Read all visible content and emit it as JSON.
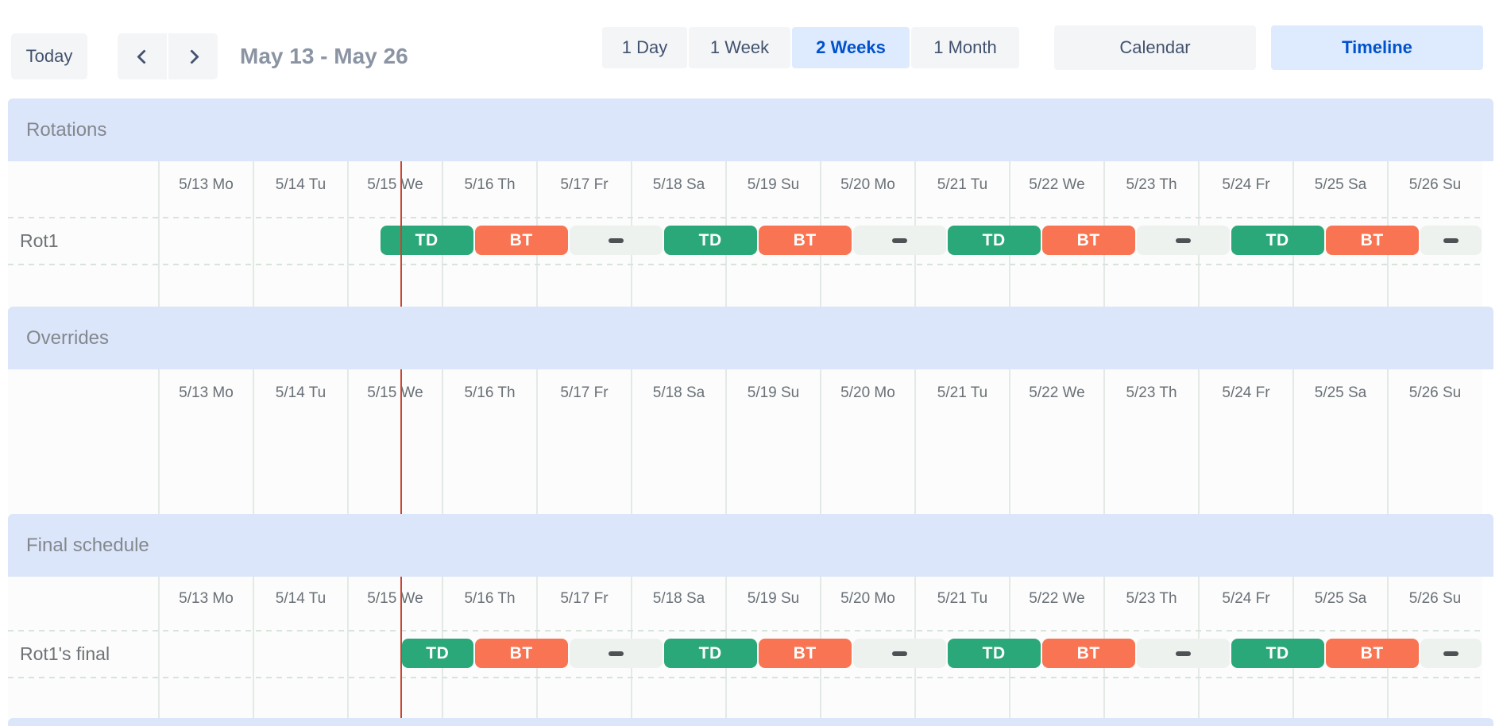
{
  "toolbar": {
    "today": "Today",
    "title": "May 13 - May 26",
    "views": [
      {
        "label": "1 Day",
        "active": false
      },
      {
        "label": "1 Week",
        "active": false
      },
      {
        "label": "2 Weeks",
        "active": true
      },
      {
        "label": "1 Month",
        "active": false
      }
    ],
    "modes": [
      {
        "label": "Calendar",
        "active": false
      },
      {
        "label": "Timeline",
        "active": true
      }
    ]
  },
  "timeline": {
    "dates": [
      "5/13 Mo",
      "5/14 Tu",
      "5/15 We",
      "5/16 Th",
      "5/17 Fr",
      "5/18 Sa",
      "5/19 Su",
      "5/20 Mo",
      "5/21 Tu",
      "5/22 We",
      "5/23 Th",
      "5/24 Fr",
      "5/25 Sa",
      "5/26 Su"
    ],
    "now": {
      "day_index": 2,
      "hour": 13.5
    },
    "sections": [
      {
        "title": "Rotations",
        "rows": [
          {
            "label": "Rot1",
            "bars": [
              {
                "kind": "td",
                "label": "TD",
                "day": 2,
                "hour": 8,
                "hours": 24
              },
              {
                "kind": "bt",
                "label": "BT",
                "day": 3,
                "hour": 8,
                "hours": 24
              },
              {
                "kind": "empty",
                "day": 4,
                "hour": 8,
                "hours": 24
              },
              {
                "kind": "td",
                "label": "TD",
                "day": 5,
                "hour": 8,
                "hours": 24
              },
              {
                "kind": "bt",
                "label": "BT",
                "day": 6,
                "hour": 8,
                "hours": 24
              },
              {
                "kind": "empty",
                "day": 7,
                "hour": 8,
                "hours": 24
              },
              {
                "kind": "td",
                "label": "TD",
                "day": 8,
                "hour": 8,
                "hours": 24
              },
              {
                "kind": "bt",
                "label": "BT",
                "day": 9,
                "hour": 8,
                "hours": 24
              },
              {
                "kind": "empty",
                "day": 10,
                "hour": 8,
                "hours": 24
              },
              {
                "kind": "td",
                "label": "TD",
                "day": 11,
                "hour": 8,
                "hours": 24
              },
              {
                "kind": "bt",
                "label": "BT",
                "day": 12,
                "hour": 8,
                "hours": 24
              },
              {
                "kind": "empty",
                "day": 13,
                "hour": 8,
                "hours": 16
              }
            ]
          }
        ]
      },
      {
        "title": "Overrides",
        "rows": []
      },
      {
        "title": "Final schedule",
        "rows": [
          {
            "label": "Rot1's final",
            "bars": [
              {
                "kind": "td",
                "label": "TD",
                "day": 2,
                "hour": 13.5,
                "hours": 18.5
              },
              {
                "kind": "bt",
                "label": "BT",
                "day": 3,
                "hour": 8,
                "hours": 24
              },
              {
                "kind": "empty",
                "day": 4,
                "hour": 8,
                "hours": 24
              },
              {
                "kind": "td",
                "label": "TD",
                "day": 5,
                "hour": 8,
                "hours": 24
              },
              {
                "kind": "bt",
                "label": "BT",
                "day": 6,
                "hour": 8,
                "hours": 24
              },
              {
                "kind": "empty",
                "day": 7,
                "hour": 8,
                "hours": 24
              },
              {
                "kind": "td",
                "label": "TD",
                "day": 8,
                "hour": 8,
                "hours": 24
              },
              {
                "kind": "bt",
                "label": "BT",
                "day": 9,
                "hour": 8,
                "hours": 24
              },
              {
                "kind": "empty",
                "day": 10,
                "hour": 8,
                "hours": 24
              },
              {
                "kind": "td",
                "label": "TD",
                "day": 11,
                "hour": 8,
                "hours": 24
              },
              {
                "kind": "bt",
                "label": "BT",
                "day": 12,
                "hour": 8,
                "hours": 24
              },
              {
                "kind": "empty",
                "day": 13,
                "hour": 8,
                "hours": 16
              }
            ]
          }
        ]
      }
    ]
  },
  "colors": {
    "shift_td": "#2ba879",
    "shift_bt": "#f97452",
    "empty_gap_bg": "#edf2ef",
    "now_line": "#c94435",
    "section_band": "#dbe6fa",
    "active_btn_bg": "#deebff",
    "active_btn_text": "#0052cc",
    "btn_bg": "#f4f5f7",
    "btn_text": "#42526e"
  }
}
